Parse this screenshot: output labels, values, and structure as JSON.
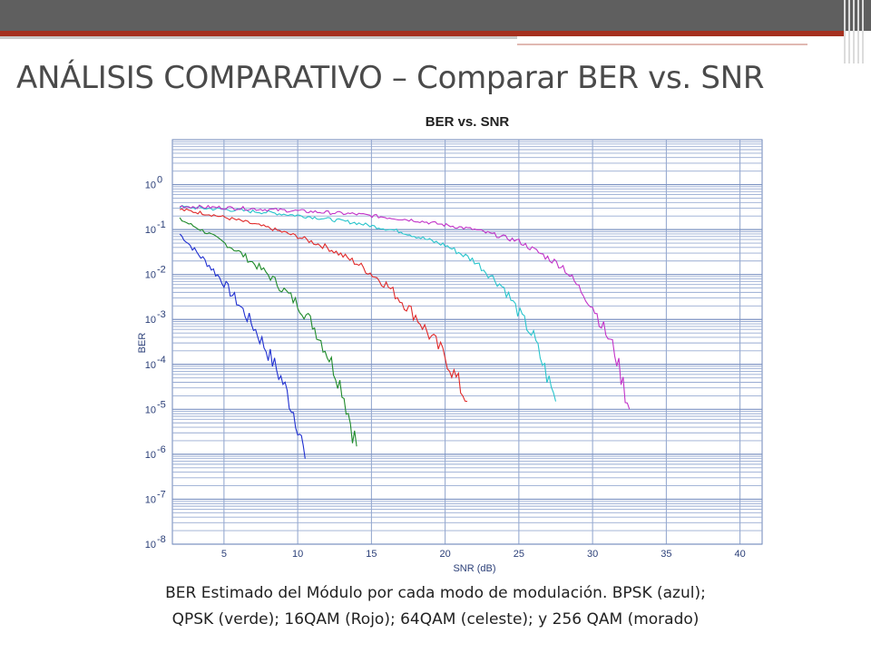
{
  "slide": {
    "title": "ANÁLISIS COMPARATIVO – Comparar BER vs. SNR",
    "caption_line1": "BER Estimado del Módulo por cada modo de modulación. BPSK (azul);",
    "caption_line2": "QPSK (verde); 16QAM (Rojo); 64QAM (celeste); y 256 QAM (morado)",
    "colors": {
      "topbar": "#5f5f5f",
      "accent": "#a5301f"
    }
  },
  "chart_data": {
    "type": "line",
    "title": "BER vs. SNR",
    "xlabel": "SNR (dB)",
    "ylabel": "BER",
    "xlim": [
      1.5,
      41.5
    ],
    "ylim": [
      1e-08,
      10
    ],
    "yscale": "log",
    "grid": true,
    "legend": "none",
    "x_ticks": [
      5,
      10,
      15,
      20,
      25,
      30,
      35,
      40
    ],
    "y_ticks": [
      {
        "value": 1,
        "base": "10",
        "exp": "0"
      },
      {
        "value": 0.1,
        "base": "10",
        "exp": "-1"
      },
      {
        "value": 0.01,
        "base": "10",
        "exp": "-2"
      },
      {
        "value": 0.001,
        "base": "10",
        "exp": "-3"
      },
      {
        "value": 0.0001,
        "base": "10",
        "exp": "-4"
      },
      {
        "value": 1e-05,
        "base": "10",
        "exp": "-5"
      },
      {
        "value": 1e-06,
        "base": "10",
        "exp": "-6"
      },
      {
        "value": 1e-07,
        "base": "10",
        "exp": "-7"
      },
      {
        "value": 1e-08,
        "base": "10",
        "exp": "-8"
      }
    ],
    "series": [
      {
        "color": "#1f2fd0",
        "x": [
          2,
          3,
          4,
          5,
          6,
          7,
          8,
          9,
          10,
          10.5
        ],
        "y": [
          0.08,
          0.035,
          0.016,
          0.0065,
          0.0022,
          0.0007,
          0.00018,
          4e-05,
          5e-06,
          8e-07
        ]
      },
      {
        "color": "#1f8a2a",
        "x": [
          2,
          4,
          6,
          8,
          10,
          11,
          12,
          13,
          14
        ],
        "y": [
          0.17,
          0.08,
          0.032,
          0.01,
          0.0022,
          0.0008,
          0.00018,
          3e-05,
          1.5e-06
        ]
      },
      {
        "color": "#e02a2a",
        "x": [
          2,
          4,
          6,
          8,
          10,
          12,
          14,
          16,
          18,
          20,
          21.5
        ],
        "y": [
          0.28,
          0.22,
          0.16,
          0.11,
          0.07,
          0.04,
          0.018,
          0.006,
          0.0012,
          0.00015,
          1.5e-05
        ]
      },
      {
        "color": "#28c4cc",
        "x": [
          2,
          5,
          8,
          11,
          14,
          17,
          20,
          22,
          24,
          26,
          27.5
        ],
        "y": [
          0.32,
          0.28,
          0.24,
          0.19,
          0.14,
          0.09,
          0.045,
          0.02,
          0.005,
          0.0004,
          1.5e-05
        ]
      },
      {
        "color": "#c233c8",
        "x": [
          2,
          6,
          10,
          14,
          18,
          22,
          25,
          28,
          30,
          31.5,
          32.5
        ],
        "y": [
          0.33,
          0.3,
          0.26,
          0.22,
          0.16,
          0.1,
          0.055,
          0.015,
          0.002,
          0.0002,
          1e-05
        ]
      }
    ]
  }
}
